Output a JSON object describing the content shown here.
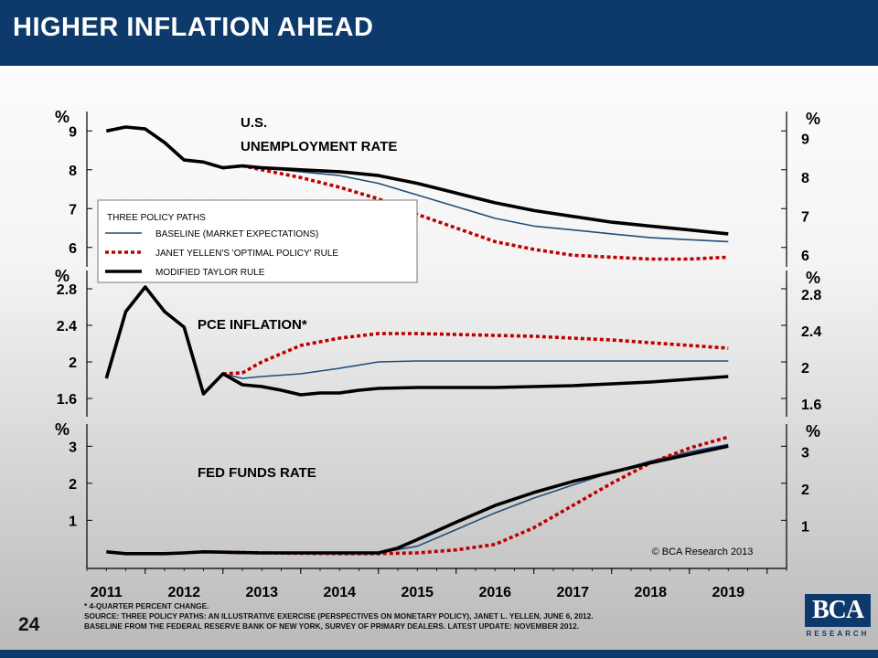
{
  "page": {
    "title": "HIGHER INFLATION AHEAD",
    "slide_number": "24",
    "copyright": "© BCA Research 2013",
    "footnotes": [
      "* 4-QUARTER PERCENT CHANGE.",
      "SOURCE: THREE POLICY PATHS: AN ILLUSTRATIVE EXERCISE (PERSPECTIVES ON MONETARY POLICY), JANET L. YELLEN, JUNE 6, 2012.",
      "BASELINE FROM THE FEDERAL RESERVE BANK OF NEW YORK, SURVEY OF PRIMARY DEALERS. LATEST UPDATE: NOVEMBER 2012."
    ],
    "logo_text": "BCA",
    "logo_subtext": "RESEARCH"
  },
  "colors": {
    "header": "#0d3a6b",
    "baseline": "#1f4e79",
    "yellen": "#c00000",
    "taylor": "#000000"
  },
  "legend": {
    "title": "THREE POLICY PATHS",
    "items": [
      {
        "label": "BASELINE (MARKET EXPECTATIONS)",
        "series": "baseline"
      },
      {
        "label": "JANET YELLEN'S 'OPTIMAL POLICY' RULE",
        "series": "yellen"
      },
      {
        "label": "MODIFIED TAYLOR RULE",
        "series": "taylor"
      }
    ]
  },
  "chart_data": [
    {
      "type": "line",
      "title": "U.S. UNEMPLOYMENT RATE",
      "ylabel": "%",
      "ylim": [
        5.5,
        9.5
      ],
      "left_ticks": [
        9,
        8,
        7,
        6
      ],
      "right_ticks": [
        9,
        8,
        7,
        6
      ],
      "x_range": [
        2010.75,
        2019.75
      ],
      "series": [
        {
          "name": "MODIFIED TAYLOR RULE",
          "key": "taylor",
          "x": [
            2011.0,
            2011.25,
            2011.5,
            2011.75,
            2012.0,
            2012.25,
            2012.5,
            2012.75,
            2013.0,
            2013.5,
            2014.0,
            2014.5,
            2015.0,
            2015.5,
            2016.0,
            2016.5,
            2017.0,
            2017.5,
            2018.0,
            2018.5,
            2019.0
          ],
          "y": [
            9.0,
            9.1,
            9.05,
            8.7,
            8.25,
            8.2,
            8.05,
            8.1,
            8.05,
            8.0,
            7.95,
            7.85,
            7.65,
            7.4,
            7.15,
            6.95,
            6.8,
            6.65,
            6.55,
            6.45,
            6.35
          ]
        },
        {
          "name": "BASELINE (MARKET EXPECTATIONS)",
          "key": "baseline",
          "x": [
            2012.5,
            2012.75,
            2013.0,
            2013.5,
            2014.0,
            2014.5,
            2015.0,
            2015.5,
            2016.0,
            2016.5,
            2017.0,
            2017.5,
            2018.0,
            2018.5,
            2019.0
          ],
          "y": [
            8.05,
            8.1,
            8.05,
            7.95,
            7.85,
            7.65,
            7.35,
            7.05,
            6.75,
            6.55,
            6.45,
            6.35,
            6.25,
            6.2,
            6.15
          ]
        },
        {
          "name": "JANET YELLEN'S 'OPTIMAL POLICY' RULE",
          "key": "yellen",
          "x": [
            2012.5,
            2012.75,
            2013.0,
            2013.5,
            2014.0,
            2014.5,
            2015.0,
            2015.5,
            2016.0,
            2016.5,
            2017.0,
            2017.5,
            2018.0,
            2018.5,
            2019.0
          ],
          "y": [
            8.05,
            8.1,
            8.0,
            7.8,
            7.55,
            7.25,
            6.85,
            6.5,
            6.15,
            5.95,
            5.8,
            5.75,
            5.7,
            5.7,
            5.75
          ]
        }
      ]
    },
    {
      "type": "line",
      "title": "PCE INFLATION*",
      "ylabel": "%",
      "ylim": [
        1.4,
        3.0
      ],
      "left_ticks": [
        2.8,
        2.4,
        2.0,
        1.6
      ],
      "right_ticks": [
        2.8,
        2.4,
        2.0,
        1.6
      ],
      "x_range": [
        2010.75,
        2019.75
      ],
      "series": [
        {
          "name": "MODIFIED TAYLOR RULE",
          "key": "taylor",
          "x": [
            2011.0,
            2011.25,
            2011.5,
            2011.75,
            2012.0,
            2012.25,
            2012.5,
            2012.75,
            2013.0,
            2013.25,
            2013.5,
            2013.75,
            2014.0,
            2014.25,
            2014.5,
            2015.0,
            2015.5,
            2016.0,
            2016.5,
            2017.0,
            2017.5,
            2018.0,
            2018.5,
            2019.0
          ],
          "y": [
            1.82,
            2.55,
            2.82,
            2.55,
            2.38,
            1.65,
            1.87,
            1.75,
            1.73,
            1.69,
            1.64,
            1.66,
            1.66,
            1.69,
            1.71,
            1.72,
            1.72,
            1.72,
            1.73,
            1.74,
            1.76,
            1.78,
            1.81,
            1.84
          ]
        },
        {
          "name": "BASELINE (MARKET EXPECTATIONS)",
          "key": "baseline",
          "x": [
            2012.5,
            2012.75,
            2013.0,
            2013.5,
            2014.0,
            2014.5,
            2015.0,
            2015.5,
            2016.0,
            2016.5,
            2017.0,
            2017.5,
            2018.0,
            2018.5,
            2019.0
          ],
          "y": [
            1.87,
            1.82,
            1.84,
            1.87,
            1.93,
            2.0,
            2.01,
            2.01,
            2.01,
            2.01,
            2.01,
            2.01,
            2.01,
            2.01,
            2.01
          ]
        },
        {
          "name": "JANET YELLEN'S 'OPTIMAL POLICY' RULE",
          "key": "yellen",
          "x": [
            2012.5,
            2012.75,
            2013.0,
            2013.5,
            2014.0,
            2014.5,
            2015.0,
            2015.5,
            2016.0,
            2016.5,
            2017.0,
            2017.5,
            2018.0,
            2018.5,
            2019.0
          ],
          "y": [
            1.87,
            1.88,
            2.0,
            2.18,
            2.26,
            2.31,
            2.31,
            2.3,
            2.29,
            2.28,
            2.26,
            2.24,
            2.21,
            2.18,
            2.15
          ]
        }
      ]
    },
    {
      "type": "line",
      "title": "FED FUNDS RATE",
      "ylabel": "%",
      "ylim": [
        -0.3,
        3.6
      ],
      "left_ticks": [
        3.0,
        2.0,
        1.0
      ],
      "right_ticks": [
        3.0,
        2.0,
        1.0
      ],
      "x_range": [
        2010.75,
        2019.75
      ],
      "x_ticks": [
        "2011",
        "2012",
        "2013",
        "2014",
        "2015",
        "2016",
        "2017",
        "2018",
        "2019"
      ],
      "series": [
        {
          "name": "MODIFIED TAYLOR RULE",
          "key": "taylor",
          "x": [
            2011.0,
            2011.25,
            2011.5,
            2011.75,
            2012.0,
            2012.25,
            2012.5,
            2013.0,
            2013.5,
            2014.0,
            2014.5,
            2014.75,
            2015.0,
            2015.5,
            2016.0,
            2016.5,
            2017.0,
            2017.5,
            2018.0,
            2018.5,
            2019.0
          ],
          "y": [
            0.15,
            0.1,
            0.1,
            0.1,
            0.12,
            0.15,
            0.14,
            0.12,
            0.12,
            0.12,
            0.12,
            0.25,
            0.48,
            0.95,
            1.4,
            1.75,
            2.05,
            2.3,
            2.55,
            2.78,
            3.0
          ]
        },
        {
          "name": "BASELINE (MARKET EXPECTATIONS)",
          "key": "baseline",
          "x": [
            2012.5,
            2013.0,
            2013.5,
            2014.0,
            2014.5,
            2015.0,
            2015.5,
            2016.0,
            2016.5,
            2017.0,
            2017.5,
            2018.0,
            2018.5,
            2019.0
          ],
          "y": [
            0.14,
            0.12,
            0.12,
            0.12,
            0.12,
            0.3,
            0.75,
            1.2,
            1.6,
            1.95,
            2.3,
            2.6,
            2.85,
            3.05
          ]
        },
        {
          "name": "JANET YELLEN'S 'OPTIMAL POLICY' RULE",
          "key": "yellen",
          "x": [
            2012.5,
            2013.0,
            2013.5,
            2014.0,
            2014.5,
            2015.0,
            2015.5,
            2016.0,
            2016.5,
            2017.0,
            2017.5,
            2018.0,
            2018.5,
            2019.0
          ],
          "y": [
            0.14,
            0.12,
            0.11,
            0.1,
            0.1,
            0.12,
            0.2,
            0.35,
            0.8,
            1.4,
            2.0,
            2.55,
            2.95,
            3.25
          ]
        }
      ]
    }
  ]
}
